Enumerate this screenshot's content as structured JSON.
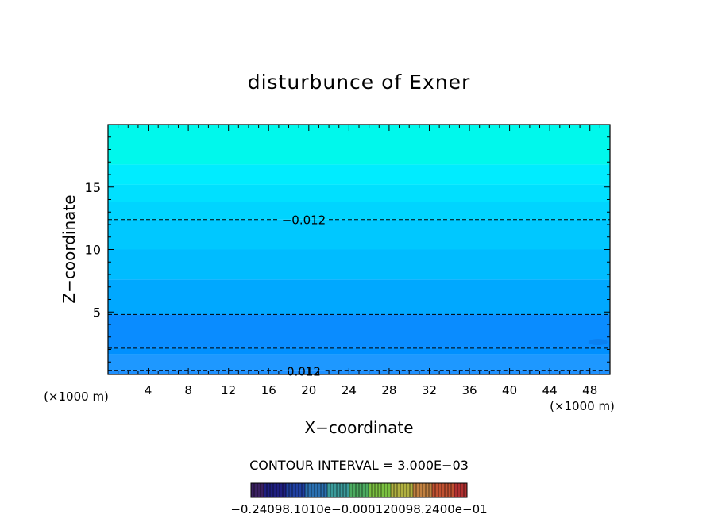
{
  "chart_data": {
    "type": "contour",
    "title": "disturbunce of Exner",
    "xlabel": "X−coordinate",
    "ylabel": "Z−coordinate",
    "x_unit_left": "(×1000 m)",
    "x_unit_right": "(×1000 m)",
    "xlim": [
      0,
      50
    ],
    "ylim": [
      0,
      20
    ],
    "x_ticks": [
      4,
      8,
      12,
      16,
      20,
      24,
      28,
      32,
      36,
      40,
      44,
      48
    ],
    "y_ticks": [
      5,
      10,
      15
    ],
    "contour_interval_text": "CONTOUR INTERVAL = 3.000E−03",
    "fill_bands": [
      {
        "z_bottom": 0.0,
        "z_top": 0.3,
        "color": "#1e90ff"
      },
      {
        "z_bottom": 0.3,
        "z_top": 1.6,
        "color": "#1e98ff"
      },
      {
        "z_bottom": 1.6,
        "z_top": 2.1,
        "color": "#0090ff"
      },
      {
        "z_bottom": 2.1,
        "z_top": 4.8,
        "color": "#0a8cff"
      },
      {
        "z_bottom": 4.8,
        "z_top": 7.6,
        "color": "#00a8ff"
      },
      {
        "z_bottom": 7.6,
        "z_top": 10.0,
        "color": "#00bcff"
      },
      {
        "z_bottom": 10.0,
        "z_top": 12.4,
        "color": "#00c8ff"
      },
      {
        "z_bottom": 12.4,
        "z_top": 13.8,
        "color": "#00d4ff"
      },
      {
        "z_bottom": 13.8,
        "z_top": 15.2,
        "color": "#00e0ff"
      },
      {
        "z_bottom": 15.2,
        "z_top": 16.8,
        "color": "#00ecff"
      },
      {
        "z_bottom": 16.8,
        "z_top": 20.0,
        "color": "#00f8ec"
      }
    ],
    "contour_lines": [
      {
        "z": 12.4,
        "label": "−0.012"
      },
      {
        "z": 4.8,
        "label": ""
      },
      {
        "z": 2.1,
        "label": ""
      },
      {
        "z": 0.3,
        "label": "0.012"
      }
    ],
    "colorbar": {
      "label": "−0.24098.1010e−0.000120098.2400e−01",
      "colors": [
        "#3a2060",
        "#1f1f80",
        "#1f3fa0",
        "#2a6fb0",
        "#3a9a9a",
        "#4caa60",
        "#7ac040",
        "#b0b040",
        "#c08040",
        "#c05030",
        "#b03030"
      ]
    }
  }
}
